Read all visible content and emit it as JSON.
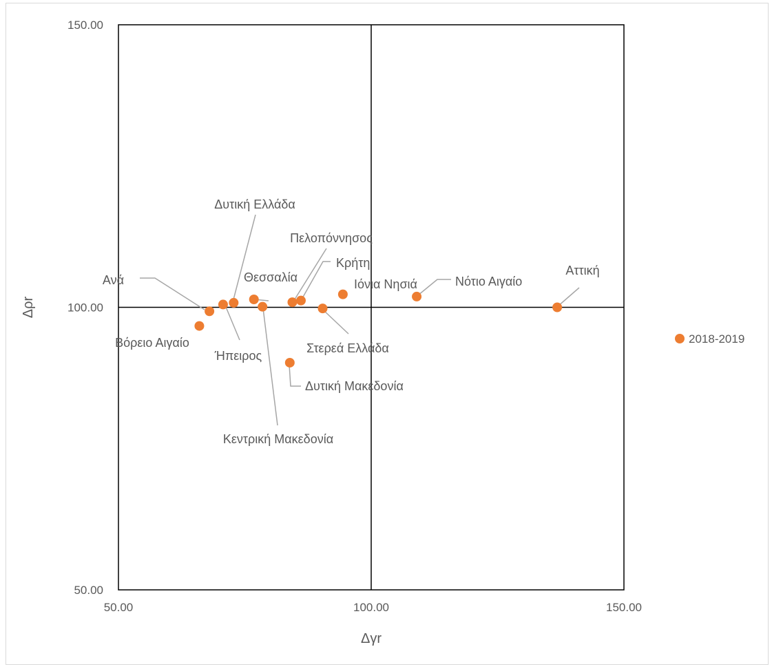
{
  "chart_data": {
    "type": "scatter",
    "title": "",
    "xlabel": "Δγr",
    "ylabel": "Δρr",
    "xlim": [
      50,
      150
    ],
    "ylim": [
      50,
      150
    ],
    "x_ticks": [
      "50.00",
      "100.00",
      "150.00"
    ],
    "y_ticks": [
      "50.00",
      "100.00",
      "150.00"
    ],
    "reference_lines": {
      "x": 100,
      "y": 100
    },
    "grid": false,
    "legend_position": "right",
    "marker_color": "#ED7D31",
    "series": [
      {
        "name": "2018-2019",
        "points": [
          {
            "label": "Ανά",
            "x": 68.0,
            "y": 99.3
          },
          {
            "label": "Βόρειο Αιγαίο",
            "x": 66.0,
            "y": 96.7
          },
          {
            "label": "Ήπειρος",
            "x": 70.7,
            "y": 100.5
          },
          {
            "label": "Δυτική Ελλάδα",
            "x": 72.8,
            "y": 100.8
          },
          {
            "label": "Θεσσαλία",
            "x": 76.8,
            "y": 101.4
          },
          {
            "label": "Κεντρική Μακεδονία",
            "x": 78.5,
            "y": 100.1
          },
          {
            "label": "Δυτική Μακεδονία",
            "x": 83.9,
            "y": 90.2
          },
          {
            "label": "Πελοπόννησος",
            "x": 84.4,
            "y": 100.9
          },
          {
            "label": "Κρήτη",
            "x": 86.1,
            "y": 101.2
          },
          {
            "label": "Στερεά Ελλάδα",
            "x": 90.4,
            "y": 99.8
          },
          {
            "label": "Ιόνια Νησιά",
            "x": 94.4,
            "y": 102.3
          },
          {
            "label": "Νότιο Αιγαίο",
            "x": 109.0,
            "y": 101.9
          },
          {
            "label": "Αττική",
            "x": 136.8,
            "y": 100.0
          }
        ]
      }
    ]
  }
}
